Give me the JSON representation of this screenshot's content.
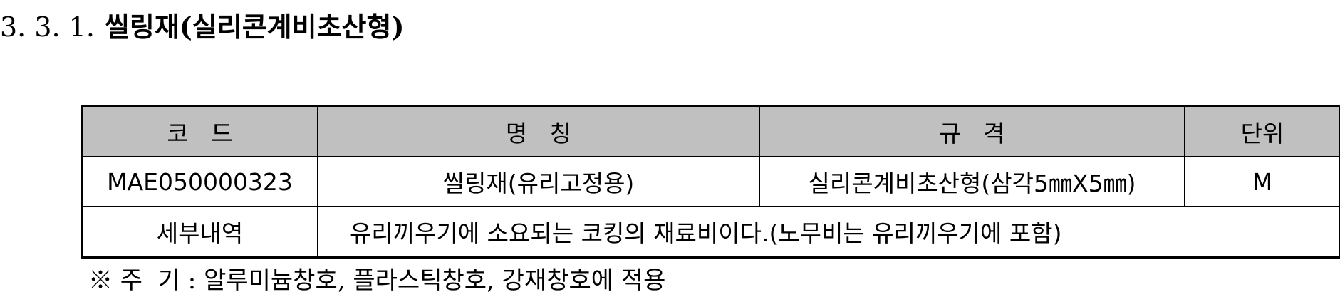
{
  "heading": {
    "number": "3. 3. 1.",
    "title": "씰링재(실리콘계비초산형)"
  },
  "table": {
    "headers": [
      "코   드",
      "명   칭",
      "규   격",
      "단위"
    ],
    "row": {
      "code": "MAE050000323",
      "name": "씰링재(유리고정용)",
      "spec": "실리콘계비초산형(삼각5㎜X5㎜)",
      "unit": "M"
    },
    "detail": {
      "label": "세부내역",
      "text": "유리끼우기에 소요되는 코킹의 재료비이다.(노무비는 유리끼우기에 포함)"
    }
  },
  "note": {
    "prefix": "※ 주  기 :",
    "text": "알루미늄창호, 플라스틱창호, 강재창호에 적용"
  }
}
